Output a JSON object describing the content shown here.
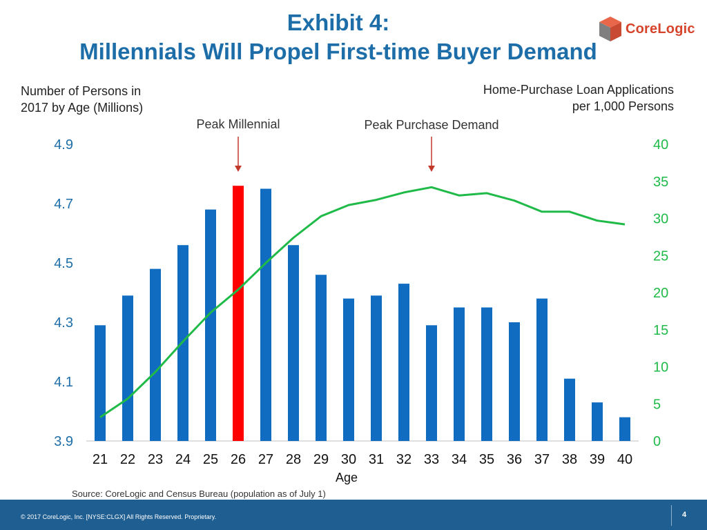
{
  "title_line1": "Exhibit 4:",
  "title_line2": "Millennials Will Propel First-time Buyer Demand",
  "logo": {
    "text": "CoreLogic",
    "icon": "corelogic-cube-logo"
  },
  "footer": {
    "copyright": "© 2017 CoreLogic, Inc. [NYSE:CLGX]  All Rights Reserved.  Proprietary.",
    "page": "4"
  },
  "source": "Source: CoreLogic and Census Bureau (population as of July 1)",
  "colors": {
    "title": "#1d6ea8",
    "bars": "#0f6cc0",
    "highlight_bar": "#ff0000",
    "line": "#1fba48",
    "left_axis": "#1d6ea8",
    "right_axis": "#1fba48",
    "arrow": "#c0392b",
    "footer_bg": "#1f5e91"
  },
  "chart_data": {
    "type": "bar",
    "xlabel": "Age",
    "ylabel_left_line1": "Number of Persons in",
    "ylabel_left_line2": "2017 by Age (Millions)",
    "ylabel_right_line1": "Home-Purchase Loan Applications",
    "ylabel_right_line2": "per 1,000 Persons",
    "categories": [
      "21",
      "22",
      "23",
      "24",
      "25",
      "26",
      "27",
      "28",
      "29",
      "30",
      "31",
      "32",
      "33",
      "34",
      "35",
      "36",
      "37",
      "38",
      "39",
      "40"
    ],
    "ylim_left": [
      3.9,
      4.9
    ],
    "left_ticks": [
      "3.9",
      "4.1",
      "4.3",
      "4.5",
      "4.7",
      "4.9"
    ],
    "ylim_right": [
      0,
      40
    ],
    "right_ticks": [
      "0",
      "5",
      "10",
      "15",
      "20",
      "25",
      "30",
      "35",
      "40"
    ],
    "series": [
      {
        "type": "bar",
        "axis": "left",
        "values": [
          4.29,
          4.39,
          4.48,
          4.56,
          4.68,
          4.76,
          4.75,
          4.56,
          4.46,
          4.38,
          4.39,
          4.43,
          4.29,
          4.35,
          4.35,
          4.3,
          4.38,
          4.11,
          4.03,
          3.98
        ],
        "highlight_index": 5
      },
      {
        "type": "line",
        "axis": "right",
        "values": [
          3.2,
          5.7,
          9.3,
          13.4,
          17.3,
          20.4,
          24.0,
          27.4,
          30.3,
          31.8,
          32.5,
          33.5,
          34.2,
          33.1,
          33.4,
          32.4,
          30.9,
          30.9,
          29.7,
          29.2
        ]
      }
    ],
    "annotations": [
      {
        "text": "Peak Millennial",
        "category": "26"
      },
      {
        "text": "Peak Purchase Demand",
        "category": "33"
      }
    ],
    "legend": "none",
    "grid": false
  }
}
